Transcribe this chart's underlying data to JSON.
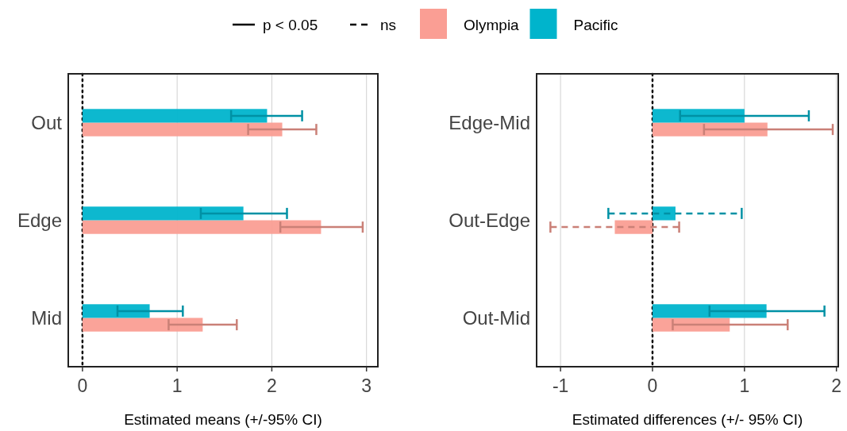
{
  "chart_data": [
    {
      "type": "bar",
      "orientation": "horizontal",
      "categories": [
        "Out",
        "Edge",
        "Mid"
      ],
      "xlabel": "Estimated means (+/-95% CI)",
      "xlim": [
        -0.15,
        3.12
      ],
      "xticks": [
        0,
        1,
        2,
        3
      ],
      "grid": "x",
      "legend": "top",
      "series": [
        {
          "name": "p < 0.05",
          "type": "line",
          "color": "#000000",
          "values": [
            null,
            null,
            null
          ],
          "line_style": "solid"
        },
        {
          "name": "ns",
          "type": "line",
          "color": "#000000",
          "values": [
            null,
            null,
            null
          ],
          "line_style": "dashed"
        },
        {
          "name": "Olympia",
          "color": "#fa9e94",
          "values": [
            2.11,
            2.52,
            1.27
          ],
          "errors": [
            [
              1.75,
              2.47
            ],
            [
              2.09,
              2.96
            ],
            [
              0.91,
              1.63
            ]
          ],
          "line_style": "solid"
        },
        {
          "name": "Pacific",
          "color": "#00b4cc",
          "values": [
            1.95,
            1.7,
            0.71
          ],
          "errors": [
            [
              1.57,
              2.32
            ],
            [
              1.25,
              2.16
            ],
            [
              0.37,
              1.06
            ]
          ],
          "line_style": "solid"
        }
      ],
      "ref_lines": [
        {
          "axis": "x",
          "value": 0,
          "color": "#000000",
          "line_style": "dotted"
        }
      ]
    },
    {
      "type": "bar",
      "orientation": "horizontal",
      "categories": [
        "Edge-Mid",
        "Out-Edge",
        "Out-Mid"
      ],
      "xlabel": "Estimated differences (+/- 95% CI)",
      "xlim": [
        -1.26,
        2.02
      ],
      "xticks": [
        -1,
        0,
        1,
        2
      ],
      "grid": "x",
      "series": [
        {
          "color": "#fa9e94",
          "values": [
            1.25,
            -0.41,
            0.84
          ],
          "errors": [
            [
              0.56,
              1.96
            ],
            [
              -1.11,
              0.29
            ],
            [
              0.22,
              1.47
            ]
          ],
          "line_style": [
            "solid",
            "dashed",
            "solid"
          ]
        },
        {
          "color": "#00b4cc",
          "values": [
            1.0,
            0.25,
            1.24
          ],
          "errors": [
            [
              0.3,
              1.7
            ],
            [
              -0.48,
              0.97
            ],
            [
              0.62,
              1.87
            ]
          ],
          "line_style": [
            "solid",
            "dashed",
            "solid"
          ]
        }
      ],
      "ref_lines": [
        {
          "axis": "x",
          "value": 0,
          "color": "#000000",
          "line_style": "dotted"
        }
      ]
    }
  ]
}
